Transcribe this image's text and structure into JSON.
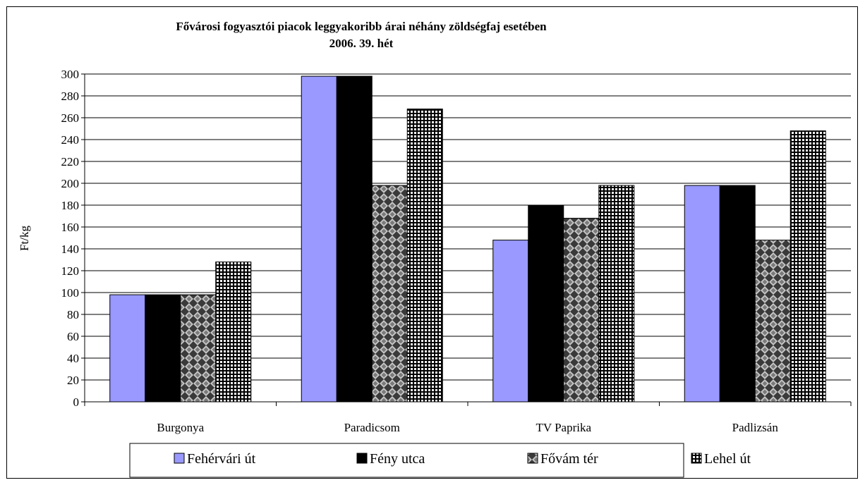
{
  "chart_data": {
    "type": "bar",
    "title": "Fővárosi fogyasztói piacok leggyakoribb árai néhány zöldségfaj esetében",
    "subtitle": "2006. 39. hét",
    "ylabel": "Ft/kg",
    "xlabel": "",
    "ylim": [
      0,
      300
    ],
    "ytick_step": 20,
    "yticks": [
      "0",
      "20",
      "40",
      "60",
      "80",
      "100",
      "120",
      "140",
      "160",
      "180",
      "200",
      "220",
      "240",
      "260",
      "280",
      "300"
    ],
    "grid": true,
    "legend_position": "bottom",
    "categories": [
      "Burgonya",
      "Paradicsom",
      "TV Paprika",
      "Padlizsán"
    ],
    "series": [
      {
        "name": "Fehérvári út",
        "values": [
          98,
          298,
          148,
          198
        ],
        "fill": "solid",
        "color": "#9999ff"
      },
      {
        "name": "Fény utca",
        "values": [
          98,
          298,
          180,
          198
        ],
        "fill": "solid",
        "color": "#000000"
      },
      {
        "name": "Fővám tér",
        "values": [
          98,
          198,
          168,
          148
        ],
        "fill": "diamond-checker",
        "color": "#404040"
      },
      {
        "name": "Lehel út",
        "values": [
          128,
          268,
          198,
          248
        ],
        "fill": "grid",
        "color": "#000000"
      }
    ]
  }
}
